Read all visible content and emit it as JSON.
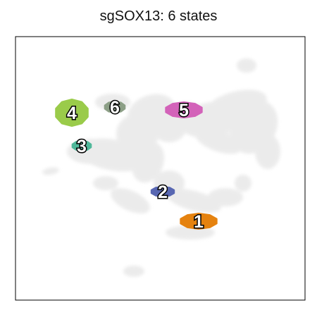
{
  "chart_data": {
    "type": "scatter",
    "title": "sgSOX13: 6 states",
    "xlabel": "",
    "ylabel": "",
    "grid": false,
    "axis_ticks": false,
    "background_color": "#dcdcdc",
    "states": [
      {
        "label": "1",
        "color": "#e5820f"
      },
      {
        "label": "2",
        "color": "#5867b2"
      },
      {
        "label": "3",
        "color": "#4fb89a"
      },
      {
        "label": "4",
        "color": "#9acb4a"
      },
      {
        "label": "5",
        "color": "#d362b9"
      },
      {
        "label": "6",
        "color": "#8c9f86"
      }
    ]
  }
}
